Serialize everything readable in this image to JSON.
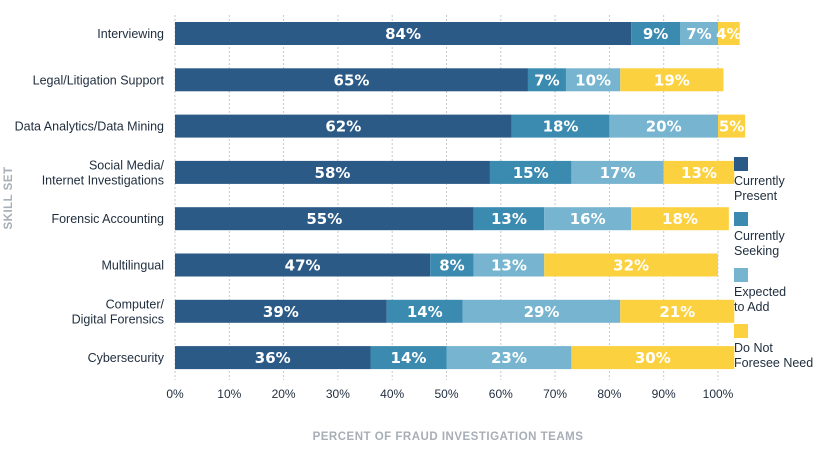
{
  "chart_data": {
    "type": "bar",
    "orientation": "horizontal",
    "stacked": true,
    "categories": [
      "Interviewing",
      "Legal/Litigation Support",
      "Data Analytics/Data Mining",
      "Social Media/\nInternet Investigations",
      "Forensic Accounting",
      "Multilingual",
      "Computer/\nDigital Forensics",
      "Cybersecurity"
    ],
    "series": [
      {
        "name": "Currently\nPresent",
        "color": "#2b5a87",
        "values": [
          84,
          65,
          62,
          58,
          55,
          47,
          39,
          36
        ]
      },
      {
        "name": "Currently\nSeeking",
        "color": "#3b8ab0",
        "values": [
          9,
          7,
          18,
          15,
          13,
          8,
          14,
          14
        ]
      },
      {
        "name": "Expected\nto Add",
        "color": "#76b4cf",
        "values": [
          7,
          10,
          20,
          17,
          16,
          13,
          29,
          23
        ]
      },
      {
        "name": "Do Not\nForesee Need",
        "color": "#fcd13f",
        "values": [
          4,
          19,
          5,
          13,
          18,
          32,
          21,
          30
        ]
      }
    ],
    "xticks": [
      "0%",
      "10%",
      "20%",
      "30%",
      "40%",
      "50%",
      "60%",
      "70%",
      "80%",
      "90%",
      "100%"
    ],
    "xlim": [
      0,
      100
    ],
    "xlabel": "PERCENT OF FRAUD INVESTIGATION TEAMS",
    "ylabel": "SKILL SET",
    "value_suffix": "%",
    "grid": true,
    "legend_position": "right"
  }
}
